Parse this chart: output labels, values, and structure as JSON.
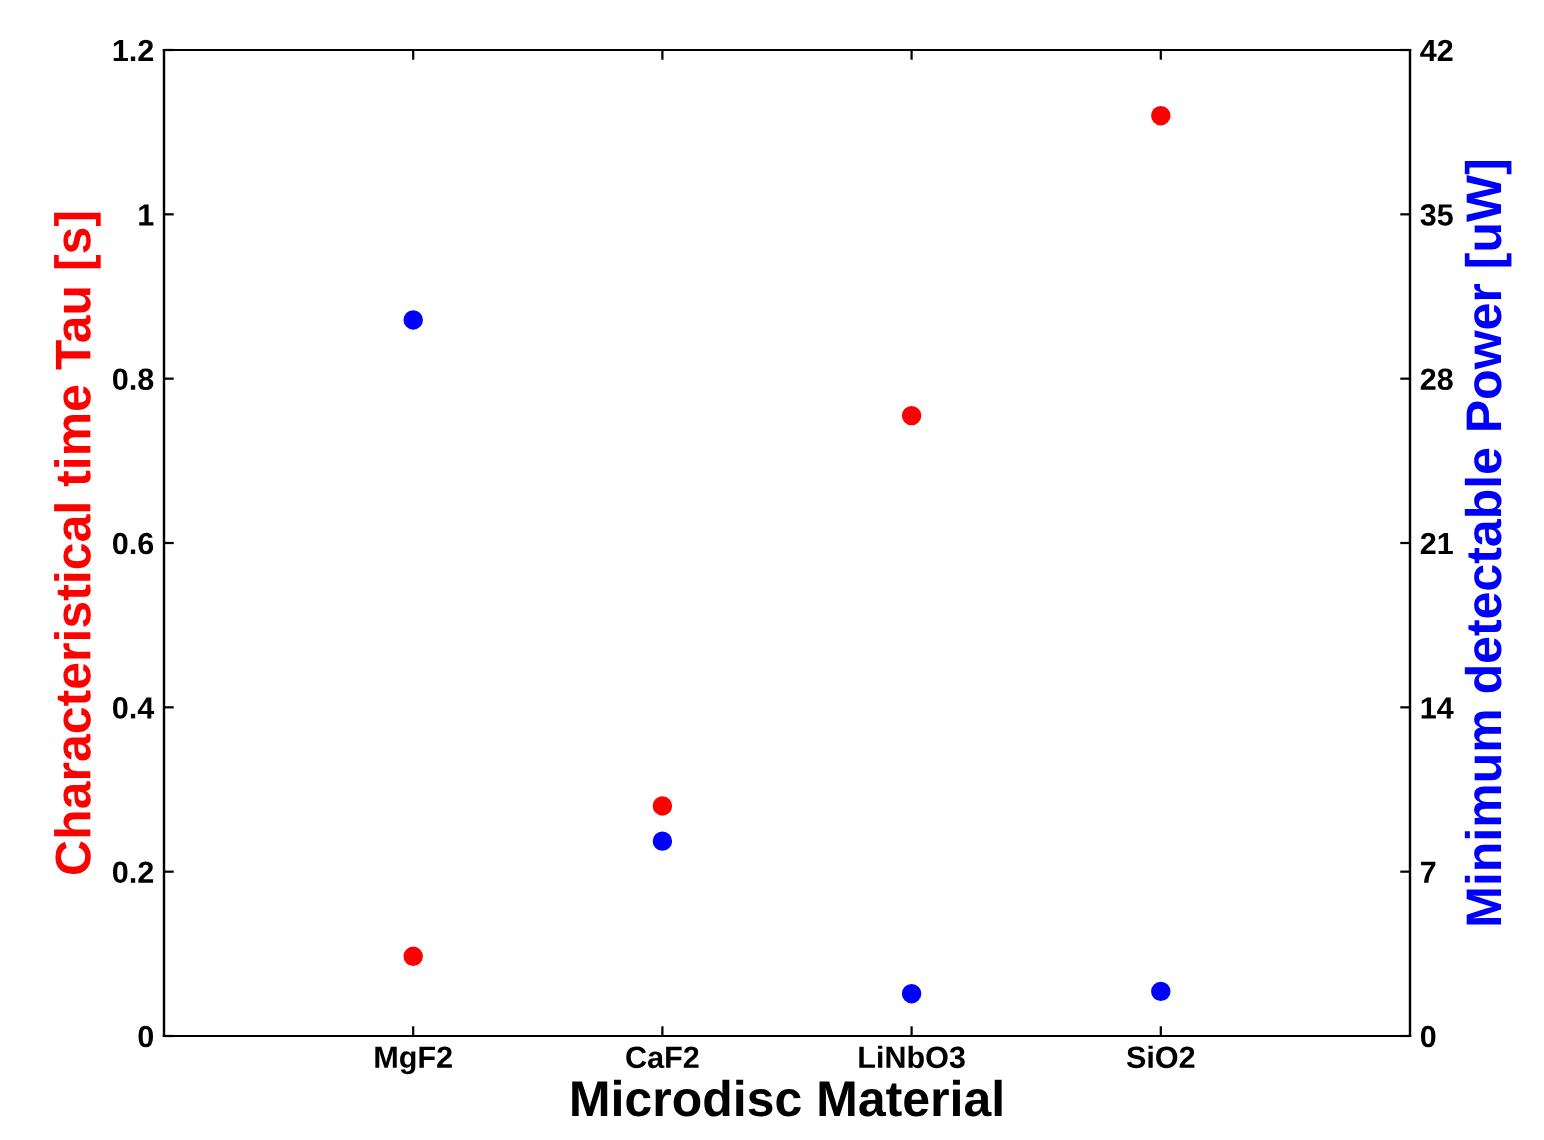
{
  "chart_data": {
    "type": "scatter",
    "xlabel": "Microdisc Material",
    "ylabel": "Characteristical time Tau [s]",
    "y2label": "Minimum detectable Power [uW]",
    "categories": [
      "MgF2",
      "CaF2",
      "LiNbO3",
      "SiO2"
    ],
    "series": [
      {
        "color": "#ff0000",
        "values": [
          0.097,
          0.28,
          0.755,
          1.12
        ]
      },
      {
        "color": "#0000ff",
        "axis": "y2",
        "values": [
          30.5,
          8.3,
          1.8,
          1.9
        ]
      }
    ],
    "ylim": [
      0,
      1.2
    ],
    "yticks": [
      0,
      0.2,
      0.4,
      0.6,
      0.8,
      1,
      1.2
    ],
    "y2lim": [
      0,
      42
    ],
    "y2ticks": [
      0,
      7,
      14,
      21,
      28,
      35,
      42
    ],
    "marker": "circle",
    "grid": false,
    "legend": false
  }
}
